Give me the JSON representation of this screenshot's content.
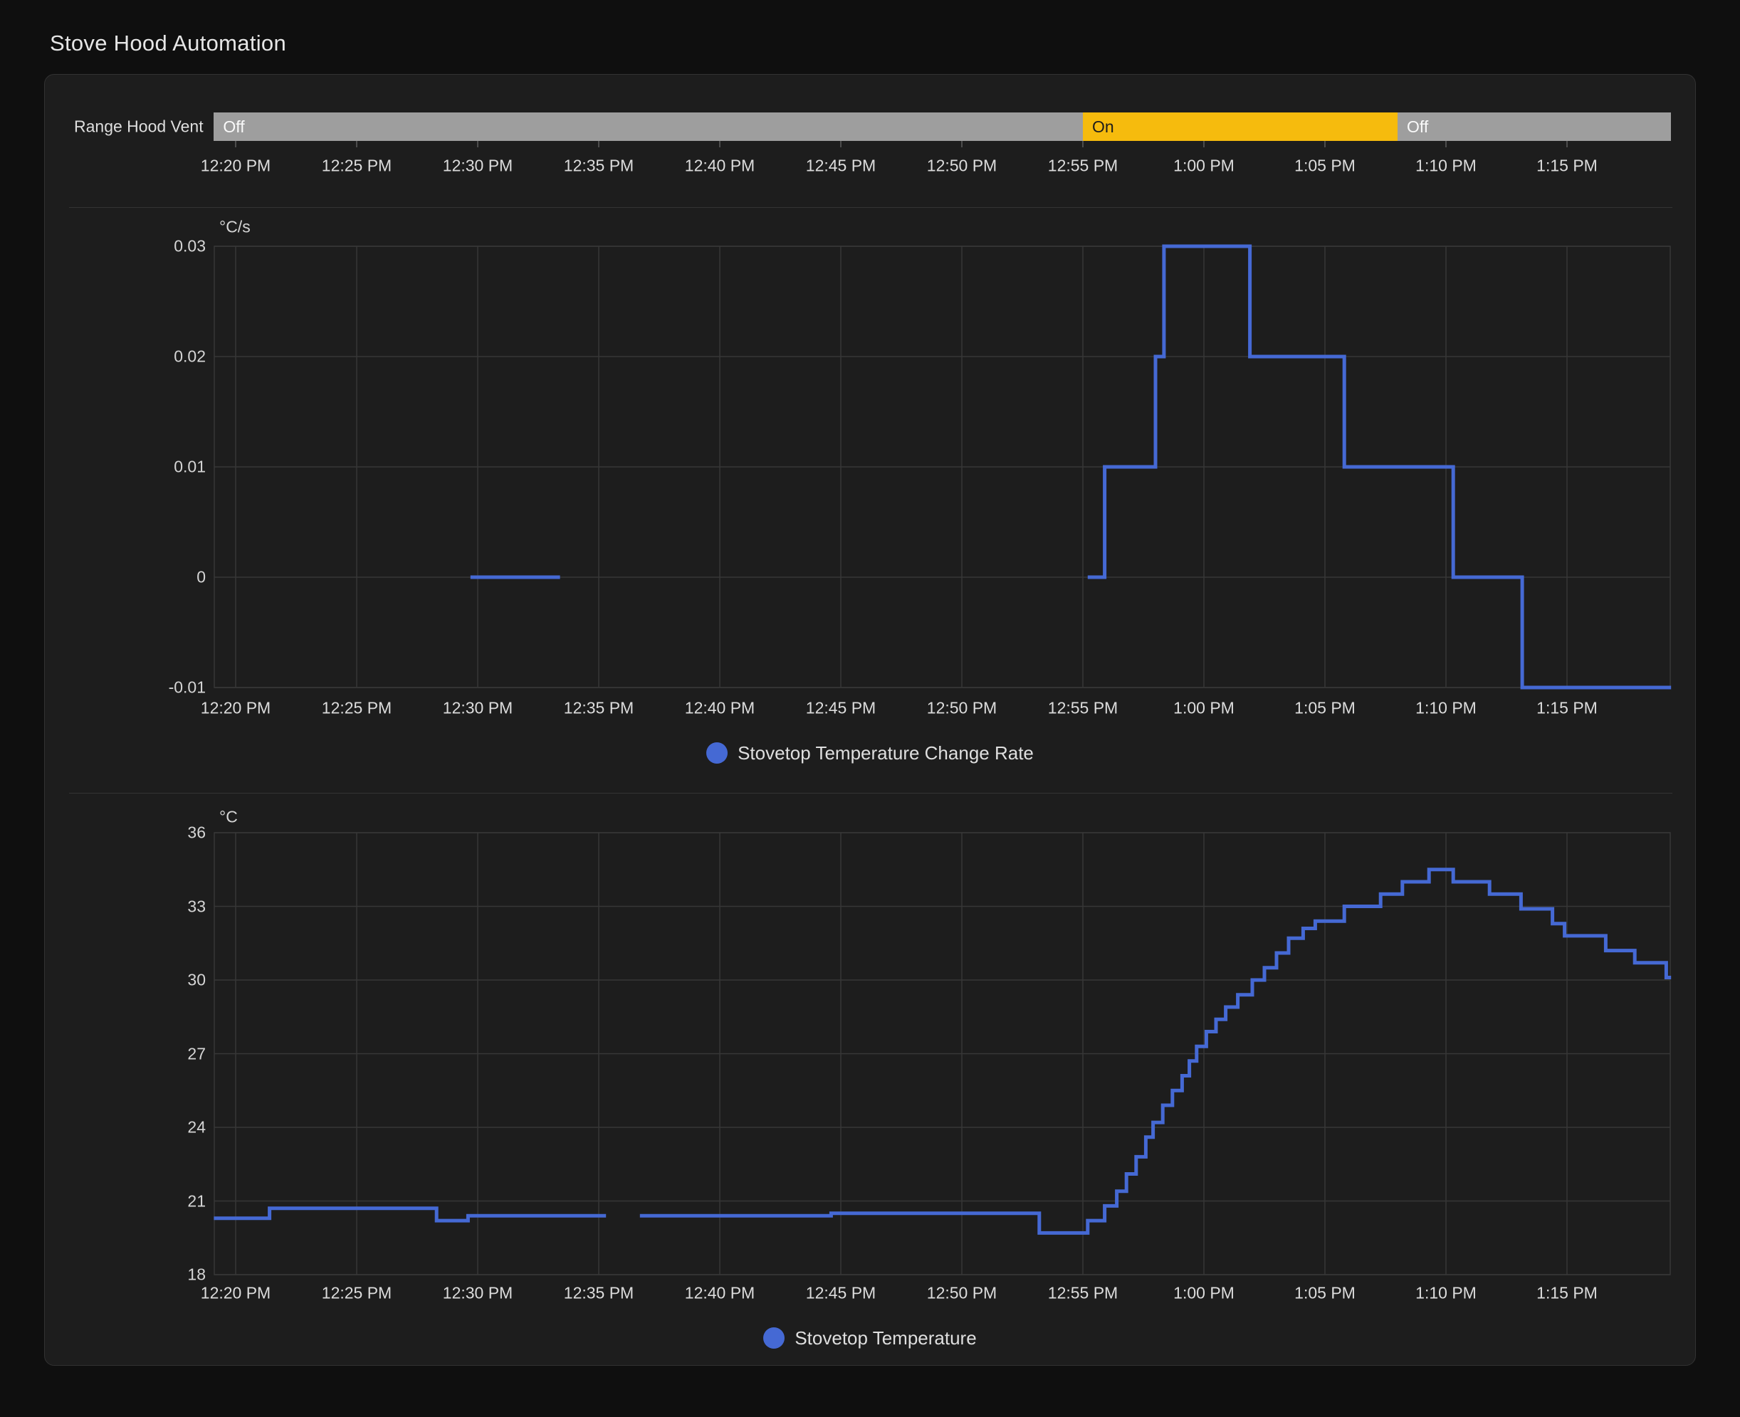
{
  "title": "Stove Hood Automation",
  "colors": {
    "page_bg": "#0f0f0f",
    "card_bg": "#1d1d1d",
    "grid": "#373737",
    "divider": "#343434",
    "series_blue": "#4569d4",
    "on": "#f6bb0d",
    "on_text": "#1c1c1c",
    "off": "#9e9e9e",
    "off_text": "#fafafa",
    "text_primary": "#e6e6e6",
    "text_secondary": "#d9d9d9"
  },
  "time_axis": {
    "start_min": 19.1,
    "end_min": 79.3,
    "ticks": [
      {
        "min": 20,
        "label": "12:20 PM"
      },
      {
        "min": 25,
        "label": "12:25 PM"
      },
      {
        "min": 30,
        "label": "12:30 PM"
      },
      {
        "min": 35,
        "label": "12:35 PM"
      },
      {
        "min": 40,
        "label": "12:40 PM"
      },
      {
        "min": 45,
        "label": "12:45 PM"
      },
      {
        "min": 50,
        "label": "12:50 PM"
      },
      {
        "min": 55,
        "label": "12:55 PM"
      },
      {
        "min": 60,
        "label": "1:00 PM"
      },
      {
        "min": 65,
        "label": "1:05 PM"
      },
      {
        "min": 70,
        "label": "1:10 PM"
      },
      {
        "min": 75,
        "label": "1:15 PM"
      }
    ]
  },
  "chart_data": [
    {
      "type": "timeline",
      "label": "Range Hood Vent",
      "segments": [
        {
          "state": "Off",
          "start_min": 19.1,
          "end_min": 55.0
        },
        {
          "state": "On",
          "start_min": 55.0,
          "end_min": 68.0
        },
        {
          "state": "Off",
          "start_min": 68.0,
          "end_min": 79.3
        }
      ]
    },
    {
      "type": "line",
      "subtype": "step",
      "ylabel": "°C/s",
      "ylim": [
        -0.01,
        0.03
      ],
      "grid": true,
      "legend_position": "bottom",
      "legend": [
        "Stovetop Temperature Change Rate"
      ],
      "y_ticks": [
        {
          "value": 0.03,
          "label": "0.03"
        },
        {
          "value": 0.02,
          "label": "0.02"
        },
        {
          "value": 0.01,
          "label": "0.01"
        },
        {
          "value": 0,
          "label": "0"
        },
        {
          "value": -0.01,
          "label": "-0.01"
        }
      ],
      "series": [
        {
          "name": "Stovetop Temperature Change Rate",
          "color": "#4569d4",
          "segments": [
            [
              [
                29.7,
                0
              ],
              [
                33.4,
                0
              ]
            ],
            [
              [
                55.2,
                0
              ],
              [
                55.9,
                0.01
              ],
              [
                58.0,
                0.02
              ],
              [
                58.35,
                0.03
              ],
              [
                61.9,
                0.02
              ],
              [
                65.8,
                0.01
              ],
              [
                70.3,
                0
              ],
              [
                73.15,
                -0.01
              ],
              [
                79.3,
                -0.01
              ]
            ]
          ]
        }
      ]
    },
    {
      "type": "line",
      "subtype": "step",
      "ylabel": "°C",
      "ylim": [
        18,
        36
      ],
      "grid": true,
      "legend_position": "bottom",
      "legend": [
        "Stovetop Temperature"
      ],
      "y_ticks": [
        {
          "value": 36,
          "label": "36"
        },
        {
          "value": 33,
          "label": "33"
        },
        {
          "value": 30,
          "label": "30"
        },
        {
          "value": 27,
          "label": "27"
        },
        {
          "value": 24,
          "label": "24"
        },
        {
          "value": 21,
          "label": "21"
        },
        {
          "value": 18,
          "label": "18"
        }
      ],
      "series": [
        {
          "name": "Stovetop Temperature",
          "color": "#4569d4",
          "segments": [
            [
              [
                19.1,
                20.3
              ],
              [
                21.4,
                20.7
              ],
              [
                28.3,
                20.2
              ],
              [
                29.6,
                20.4
              ],
              [
                35.3,
                20.4
              ]
            ],
            [
              [
                36.7,
                20.4
              ],
              [
                44.6,
                20.5
              ],
              [
                53.2,
                19.7
              ],
              [
                55.2,
                20.2
              ],
              [
                55.9,
                20.8
              ],
              [
                56.4,
                21.4
              ],
              [
                56.8,
                22.1
              ],
              [
                57.2,
                22.8
              ],
              [
                57.6,
                23.6
              ],
              [
                57.9,
                24.2
              ],
              [
                58.3,
                24.9
              ],
              [
                58.7,
                25.5
              ],
              [
                59.1,
                26.1
              ],
              [
                59.4,
                26.7
              ],
              [
                59.7,
                27.3
              ],
              [
                60.1,
                27.9
              ],
              [
                60.5,
                28.4
              ],
              [
                60.9,
                28.9
              ],
              [
                61.4,
                29.4
              ],
              [
                62.0,
                30.0
              ],
              [
                62.5,
                30.5
              ],
              [
                63.0,
                31.1
              ],
              [
                63.5,
                31.7
              ],
              [
                64.1,
                32.1
              ],
              [
                64.6,
                32.4
              ],
              [
                65.8,
                33.0
              ],
              [
                67.3,
                33.5
              ],
              [
                68.2,
                34.0
              ],
              [
                69.3,
                34.5
              ],
              [
                70.3,
                34.0
              ],
              [
                71.8,
                33.5
              ],
              [
                73.1,
                32.9
              ],
              [
                74.4,
                32.3
              ],
              [
                74.9,
                31.8
              ],
              [
                76.6,
                31.2
              ],
              [
                77.8,
                30.7
              ],
              [
                79.1,
                30.1
              ],
              [
                79.3,
                30.1
              ]
            ]
          ]
        }
      ]
    }
  ]
}
